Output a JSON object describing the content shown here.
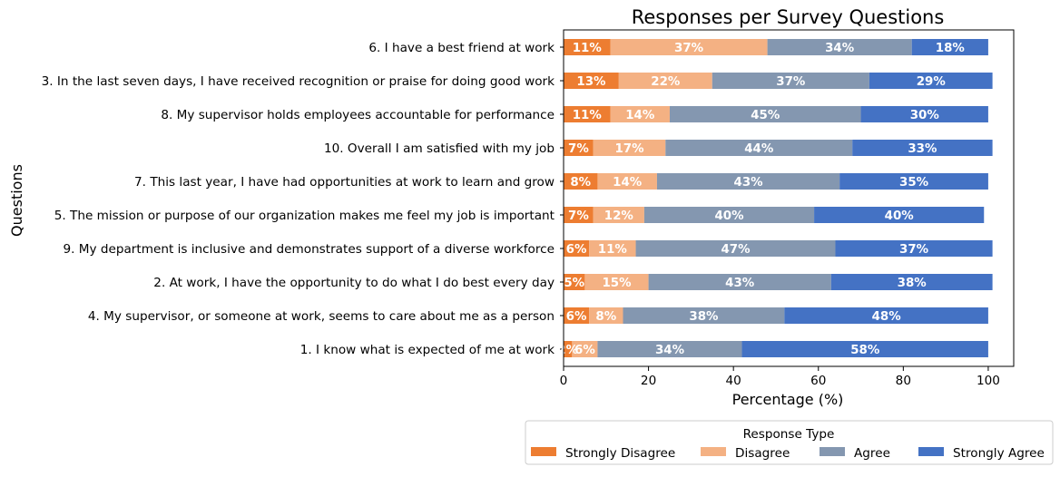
{
  "chart_data": {
    "type": "bar",
    "orientation": "horizontal",
    "stacked": true,
    "title": "Responses per Survey Questions",
    "xlabel": "Percentage (%)",
    "ylabel": "Questions",
    "xlim": [
      0,
      106
    ],
    "xticks": [
      0,
      20,
      40,
      60,
      80,
      100
    ],
    "grid": false,
    "legend": {
      "title": "Response Type",
      "placement": "bottom-right, below plot",
      "columns": 4
    },
    "categories": [
      "6. I have a best friend at work",
      "3. In the last seven days, I have received recognition or praise for doing good work",
      "8. My supervisor holds employees accountable for performance",
      "10. Overall I am satisfied with my job",
      "7. This last year, I have had opportunities at work to learn and grow",
      "5. The mission or purpose of our organization makes me feel my job is important",
      "9. My department is inclusive and demonstrates support of a diverse workforce",
      "2. At work, I have the opportunity to do what I do best every day",
      "4. My supervisor, or someone at work, seems to care about me as a person",
      "1. I know what is expected of me at work"
    ],
    "series": [
      {
        "name": "Strongly Disagree",
        "color": "#ed7d31",
        "values": [
          11,
          13,
          11,
          7,
          8,
          7,
          6,
          5,
          6,
          2
        ]
      },
      {
        "name": "Disagree",
        "color": "#f4b183",
        "values": [
          37,
          22,
          14,
          17,
          14,
          12,
          11,
          15,
          8,
          6
        ]
      },
      {
        "name": "Agree",
        "color": "#8497b0",
        "values": [
          34,
          37,
          45,
          44,
          43,
          40,
          47,
          43,
          38,
          34
        ]
      },
      {
        "name": "Strongly Agree",
        "color": "#4472c4",
        "values": [
          18,
          29,
          30,
          33,
          35,
          40,
          37,
          38,
          48,
          58
        ]
      }
    ]
  }
}
